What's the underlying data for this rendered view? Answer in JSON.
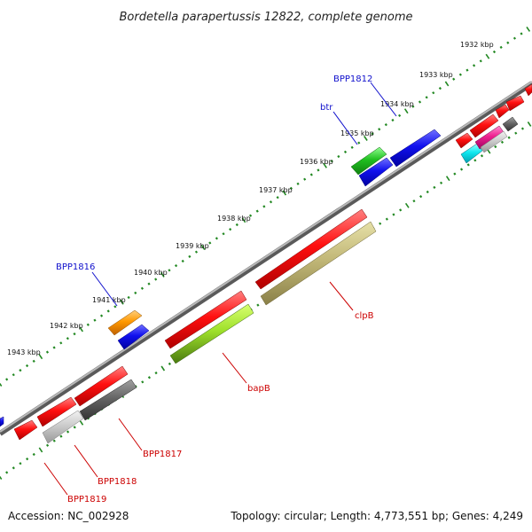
{
  "title": "Bordetella parapertussis 12822, complete genome",
  "footer": {
    "accession": "Accession: NC_002928",
    "topology": "Topology: circular; Length: 4,773,551 bp; Genes: 4,249"
  },
  "kbp_labels": [
    "1932 kbp",
    "1933 kbp",
    "1934 kbp",
    "1935 kbp",
    "1936 kbp",
    "1937 kbp",
    "1938 kbp",
    "1939 kbp",
    "1940 kbp",
    "1941 kbp",
    "1942 kbp",
    "1943 kbp"
  ],
  "gene_labels": {
    "bpp1812": "BPP1812",
    "btr": "btr",
    "bpp1816": "BPP1816",
    "clpb": "clpB",
    "bapb": "bapB",
    "bpp1817": "BPP1817",
    "bpp1818": "BPP1818",
    "bpp1819": "BPP1819"
  },
  "colors": {
    "forward_gene": "#ee0000",
    "reverse_gene": "#1111dd",
    "backbone": "#8a8a8a",
    "tick": "#228822",
    "label_blue": "#1010cc",
    "label_red": "#cc0000"
  }
}
